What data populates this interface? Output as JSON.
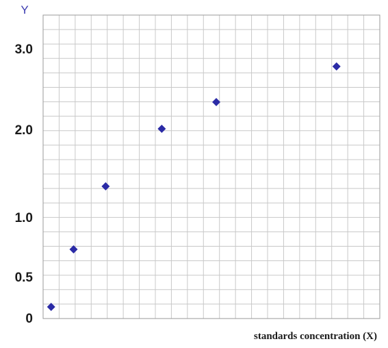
{
  "chart_data": {
    "type": "scatter",
    "xlabel": "standards concentration (X)",
    "ylabel": "Y",
    "y_ticks": [
      {
        "label": "0",
        "value": 0
      },
      {
        "label": "0.5",
        "value": 0.5
      },
      {
        "label": "1.0",
        "value": 1.0
      },
      {
        "label": "2.0",
        "value": 2.0
      },
      {
        "label": "3.0",
        "value": 3.0
      }
    ],
    "xlim": [
      0,
      21
    ],
    "ylim": [
      0,
      3.4
    ],
    "grid": true,
    "marker_color": "#2b2ba6",
    "grid_color": "#c8c8c8",
    "series": [
      {
        "points": [
          {
            "x": 0.5,
            "y": 0.15
          },
          {
            "x": 1.9,
            "y": 0.8
          },
          {
            "x": 3.9,
            "y": 1.5
          },
          {
            "x": 7.4,
            "y": 2.15
          },
          {
            "x": 10.8,
            "y": 2.45
          },
          {
            "x": 18.3,
            "y": 2.85
          }
        ]
      }
    ]
  }
}
